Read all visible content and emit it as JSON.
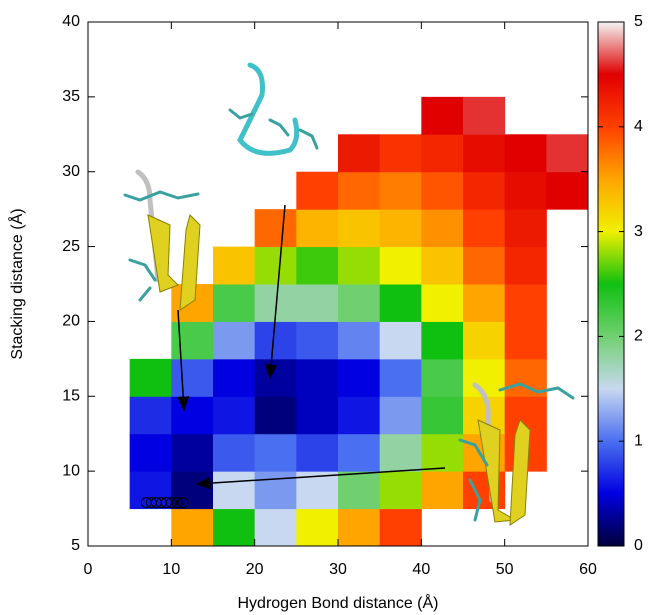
{
  "chart_data": {
    "type": "heatmap",
    "x_label": "Hydrogen Bond distance (Å)",
    "y_label": "Stacking distance (Å)",
    "xlim": [
      0,
      60
    ],
    "ylim": [
      5,
      40
    ],
    "xticks": [
      0,
      10,
      20,
      30,
      40,
      50,
      60
    ],
    "yticks": [
      5,
      10,
      15,
      20,
      25,
      30,
      35,
      40
    ],
    "xbins": [
      0,
      5,
      10,
      15,
      20,
      25,
      30,
      35,
      40,
      45,
      50,
      55,
      60
    ],
    "ybins": [
      5,
      7.5,
      10,
      12.5,
      15,
      17.5,
      20,
      22.5,
      25,
      27.5,
      30,
      32.5,
      35
    ],
    "z": [
      [
        null,
        null,
        3.5,
        2.5,
        1.5,
        3,
        3.5,
        4,
        null,
        null,
        null,
        null
      ],
      [
        null,
        0.6,
        0.2,
        1.5,
        1.2,
        1.5,
        2,
        2.8,
        3.5,
        4,
        null,
        null
      ],
      [
        null,
        0.5,
        0.3,
        0.9,
        1.0,
        0.8,
        1.0,
        1.8,
        2.8,
        3.5,
        4,
        null
      ],
      [
        null,
        0.7,
        0.5,
        0.6,
        0.2,
        0.4,
        0.6,
        1.2,
        2.3,
        3.2,
        4,
        null
      ],
      [
        null,
        2.5,
        0.9,
        0.5,
        0.3,
        0.4,
        0.5,
        1.0,
        2.2,
        3.0,
        3.8,
        null
      ],
      [
        null,
        null,
        2.2,
        1.2,
        0.8,
        0.9,
        1.1,
        1.5,
        2.5,
        3.2,
        4,
        null
      ],
      [
        null,
        null,
        3.5,
        2.2,
        1.8,
        1.8,
        2,
        2.5,
        3,
        3.5,
        4,
        null
      ],
      [
        null,
        null,
        null,
        3.3,
        2.8,
        2.6,
        2.8,
        3,
        3.3,
        3.8,
        4.2,
        null
      ],
      [
        null,
        null,
        null,
        null,
        3.8,
        3.4,
        3.3,
        3.4,
        3.6,
        4,
        4.3,
        null
      ],
      [
        null,
        null,
        null,
        null,
        null,
        4,
        3.8,
        3.7,
        3.9,
        4.2,
        4.4,
        4.5
      ],
      [
        null,
        null,
        null,
        null,
        null,
        null,
        4.3,
        4.1,
        4.2,
        4.4,
        4.5,
        4.6
      ],
      [
        null,
        null,
        null,
        null,
        null,
        null,
        null,
        null,
        4.5,
        4.6,
        null,
        null
      ]
    ],
    "zlim": [
      0,
      5
    ],
    "zticks": [
      0,
      1,
      2,
      3,
      4,
      5
    ],
    "colormap": [
      "#00003a",
      "#0000e0",
      "#4a6ff0",
      "#c8d8f0",
      "#70d070",
      "#10c010",
      "#f0f000",
      "#ffa500",
      "#ff4000",
      "#e00000",
      "#f4f4f4"
    ],
    "markers": {
      "x": [
        7,
        7.6,
        8.2,
        8.8,
        9.4,
        10,
        10.7,
        11.4
      ],
      "y": [
        7.9,
        7.9,
        7.9,
        7.9,
        7.9,
        7.9,
        7.9,
        7.9
      ],
      "color": "#000000"
    }
  }
}
